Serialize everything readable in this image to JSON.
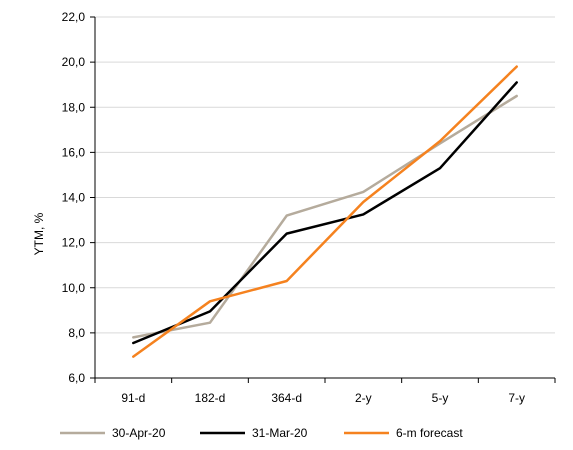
{
  "chart_data": {
    "type": "line",
    "title": "",
    "xlabel": "",
    "ylabel": "YTM, %",
    "categories": [
      "91-d",
      "182-d",
      "364-d",
      "2-y",
      "5-y",
      "7-y"
    ],
    "ylim": [
      6.0,
      22.0
    ],
    "yticks": [
      "6,0",
      "8,0",
      "10,0",
      "12,0",
      "14,0",
      "16,0",
      "18,0",
      "20,0",
      "22,0"
    ],
    "grid": true,
    "legend_position": "bottom",
    "series": [
      {
        "name": "30-Apr-20",
        "color": "#b5ab9c",
        "values": [
          7.8,
          8.45,
          13.2,
          14.25,
          16.4,
          18.5
        ]
      },
      {
        "name": "31-Mar-20",
        "color": "#000000",
        "values": [
          7.55,
          8.95,
          12.4,
          13.25,
          15.3,
          19.1
        ]
      },
      {
        "name": "6-m forecast",
        "color": "#f5821f",
        "values": [
          6.95,
          9.4,
          10.3,
          13.8,
          16.5,
          19.8
        ]
      }
    ]
  }
}
